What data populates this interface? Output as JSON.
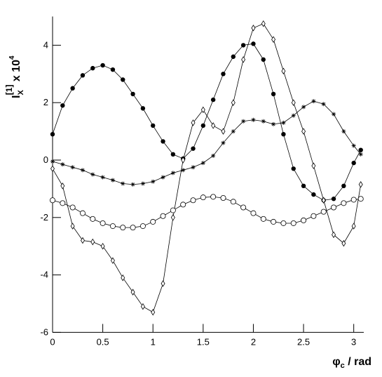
{
  "chart_data": {
    "type": "line",
    "xlabel": {
      "base": "φ",
      "sub": "c",
      "rest": " / rad"
    },
    "ylabel": {
      "base": "I",
      "sub": "X",
      "sup": "[1]",
      "mult": " x 10",
      "exp": "4"
    },
    "x": [
      0,
      0.1,
      0.2,
      0.3,
      0.4,
      0.5,
      0.6,
      0.7,
      0.8,
      0.9,
      1.0,
      1.1,
      1.2,
      1.3,
      1.4,
      1.5,
      1.6,
      1.7,
      1.8,
      1.9,
      2.0,
      2.1,
      2.2,
      2.3,
      2.4,
      2.5,
      2.6,
      2.7,
      2.8,
      2.9,
      3.0,
      3.07
    ],
    "series": [
      {
        "color": "#000000",
        "marker": "filled-circle",
        "values": [
          0.9,
          1.9,
          2.5,
          2.95,
          3.2,
          3.3,
          3.15,
          2.8,
          2.3,
          1.8,
          1.2,
          0.65,
          0.2,
          0.05,
          0.4,
          1.2,
          2.1,
          3.0,
          3.6,
          4.0,
          4.05,
          3.5,
          2.3,
          0.9,
          -0.3,
          -0.9,
          -1.2,
          -1.4,
          -1.35,
          -0.9,
          -0.1,
          0.35
        ]
      },
      {
        "color": "#000000",
        "marker": "open-diamond",
        "values": [
          -0.3,
          -0.9,
          -2.3,
          -2.8,
          -2.85,
          -3.0,
          -3.5,
          -4.1,
          -4.6,
          -5.1,
          -5.3,
          -4.3,
          -2.0,
          0.0,
          1.3,
          1.75,
          1.2,
          1.0,
          2.0,
          3.5,
          4.6,
          4.75,
          4.2,
          3.1,
          2.0,
          1.0,
          -0.2,
          -1.4,
          -2.6,
          -2.9,
          -2.3,
          -0.85
        ]
      },
      {
        "color": "#000000",
        "marker": "star",
        "values": [
          -0.05,
          -0.15,
          -0.25,
          -0.35,
          -0.5,
          -0.6,
          -0.7,
          -0.82,
          -0.85,
          -0.82,
          -0.75,
          -0.6,
          -0.45,
          -0.35,
          -0.25,
          -0.1,
          0.15,
          0.6,
          1.0,
          1.35,
          1.4,
          1.35,
          1.25,
          1.3,
          1.55,
          1.85,
          2.05,
          1.95,
          1.6,
          1.0,
          0.5,
          0.2
        ]
      },
      {
        "color": "#000000",
        "marker": "open-circle",
        "values": [
          -1.4,
          -1.5,
          -1.65,
          -1.85,
          -2.05,
          -2.2,
          -2.3,
          -2.35,
          -2.35,
          -2.3,
          -2.15,
          -1.95,
          -1.75,
          -1.55,
          -1.4,
          -1.3,
          -1.28,
          -1.32,
          -1.45,
          -1.65,
          -1.85,
          -2.05,
          -2.15,
          -2.2,
          -2.2,
          -2.1,
          -1.95,
          -1.8,
          -1.65,
          -1.5,
          -1.38,
          -1.35
        ]
      }
    ],
    "xlim": [
      0,
      3.1
    ],
    "ylim": [
      -6,
      5
    ],
    "xticks": [
      0,
      0.5,
      1,
      1.5,
      2,
      2.5,
      3
    ],
    "yticks": [
      -6,
      -4,
      -2,
      0,
      2,
      4
    ]
  }
}
